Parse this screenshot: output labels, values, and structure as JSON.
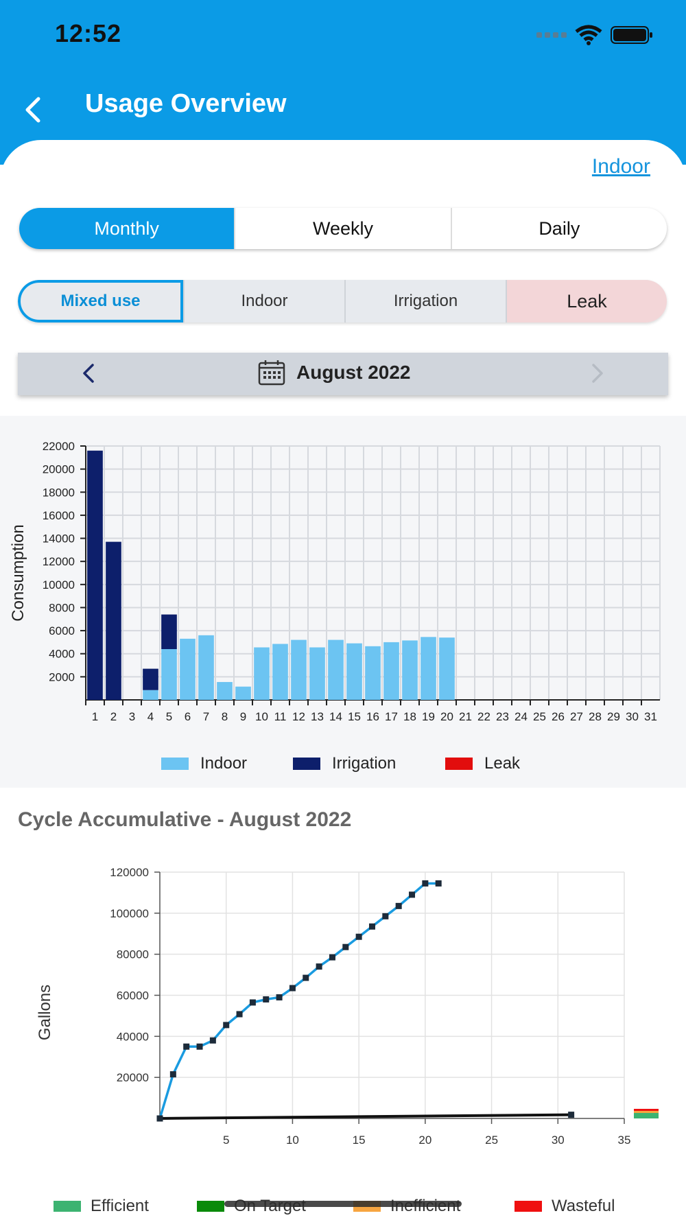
{
  "status_bar": {
    "time": "12:52"
  },
  "header": {
    "title": "Usage Overview"
  },
  "indoor_link": "Indoor",
  "period_tabs": [
    {
      "label": "Monthly",
      "active": true
    },
    {
      "label": "Weekly",
      "active": false
    },
    {
      "label": "Daily",
      "active": false
    }
  ],
  "type_tabs": [
    {
      "label": "Mixed use",
      "active": true
    },
    {
      "label": "Indoor",
      "active": false
    },
    {
      "label": "Irrigation",
      "active": false
    },
    {
      "label": "Leak",
      "active": false
    }
  ],
  "month_nav": {
    "label": "August 2022"
  },
  "colors": {
    "accent": "#0b9be6",
    "indoor": "#6cc4f2",
    "irrigation": "#0d1f6b",
    "leak": "#e20d0d",
    "efficient": "#3cb371",
    "on_target": "#0a8a0a",
    "inefficient": "#f7a540",
    "wasteful": "#ef1010"
  },
  "chart_data": [
    {
      "type": "bar",
      "stacked": true,
      "ylabel": "Consumption",
      "ylim": [
        0,
        22000
      ],
      "yticks": [
        2000,
        4000,
        6000,
        8000,
        10000,
        12000,
        14000,
        16000,
        18000,
        20000,
        22000
      ],
      "categories": [
        "1",
        "2",
        "3",
        "4",
        "5",
        "6",
        "7",
        "8",
        "9",
        "10",
        "11",
        "12",
        "13",
        "14",
        "15",
        "16",
        "17",
        "18",
        "19",
        "20",
        "21",
        "22",
        "23",
        "24",
        "25",
        "26",
        "27",
        "28",
        "29",
        "30",
        "31"
      ],
      "series": [
        {
          "name": "Indoor",
          "values": [
            0,
            0,
            0,
            850,
            4400,
            5300,
            5600,
            1550,
            1150,
            4550,
            4850,
            5200,
            4550,
            5200,
            4900,
            4650,
            5000,
            5150,
            5450,
            5400,
            0,
            0,
            0,
            0,
            0,
            0,
            0,
            0,
            0,
            0,
            0
          ]
        },
        {
          "name": "Irrigation",
          "values": [
            21600,
            13700,
            0,
            1850,
            3000,
            0,
            0,
            0,
            0,
            0,
            0,
            0,
            0,
            0,
            0,
            0,
            0,
            0,
            0,
            0,
            0,
            0,
            0,
            0,
            0,
            0,
            0,
            0,
            0,
            0,
            0
          ]
        },
        {
          "name": "Leak",
          "values": [
            0,
            0,
            0,
            0,
            0,
            0,
            0,
            0,
            0,
            0,
            0,
            0,
            0,
            0,
            0,
            0,
            0,
            0,
            0,
            0,
            0,
            0,
            0,
            0,
            0,
            0,
            0,
            0,
            0,
            0,
            0
          ]
        }
      ],
      "legend": "bottom",
      "grid": true
    },
    {
      "type": "line",
      "title": "Cycle Accumulative - August 2022",
      "ylabel": "Gallons",
      "xlim": [
        0,
        35
      ],
      "ylim": [
        0,
        120000
      ],
      "xticks": [
        5,
        10,
        15,
        20,
        25,
        30,
        35
      ],
      "yticks": [
        20000,
        40000,
        60000,
        80000,
        100000,
        120000
      ],
      "series": [
        {
          "name": "",
          "color": "#1a9be0",
          "x": [
            0,
            1,
            2,
            3,
            4,
            5,
            6,
            7,
            8,
            9,
            10,
            11,
            12,
            13,
            14,
            15,
            16,
            17,
            18,
            19,
            20,
            21
          ],
          "y": [
            0,
            21500,
            35000,
            35000,
            38000,
            45500,
            50800,
            56500,
            58000,
            59000,
            63500,
            68500,
            74000,
            78500,
            83500,
            88500,
            93500,
            98500,
            103500,
            109000,
            114500,
            114500
          ]
        },
        {
          "name": "",
          "color": "#111111",
          "x": [
            0,
            31
          ],
          "y": [
            0,
            1800
          ]
        }
      ],
      "legend_items": [
        {
          "label": "Efficient",
          "color": "#3cb371"
        },
        {
          "label": "On Target",
          "color": "#0a8a0a"
        },
        {
          "label": "Inefficient",
          "color": "#f7a540"
        },
        {
          "label": "Wasteful",
          "color": "#ef1010"
        }
      ],
      "grid": true,
      "legend": "bottom"
    }
  ]
}
